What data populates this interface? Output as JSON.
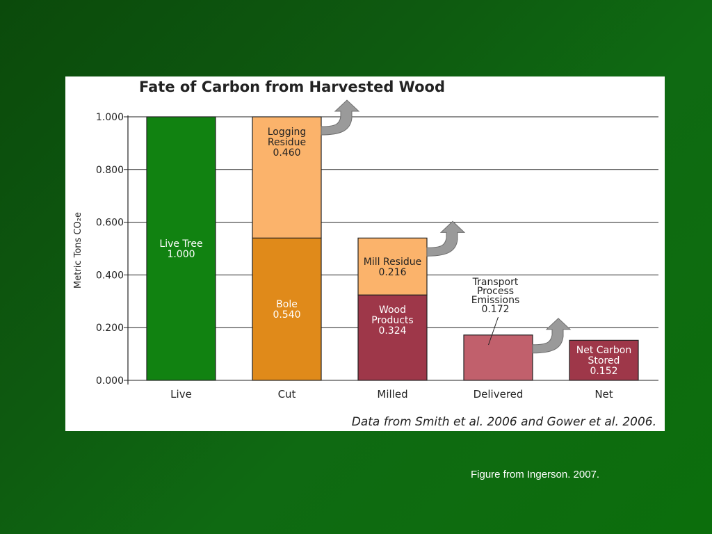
{
  "caption": "Figure from Ingerson. 2007.",
  "chart_data": {
    "type": "bar",
    "title": "Fate of Carbon from Harvested Wood",
    "ylabel": "Metric Tons CO₂e",
    "xlabel": "",
    "ylim": [
      0,
      1.0
    ],
    "yticks": [
      "0.000",
      "0.200",
      "0.400",
      "0.600",
      "0.800",
      "1.000"
    ],
    "grid": true,
    "categories": [
      "Live",
      "Cut",
      "Milled",
      "Delivered",
      "Net"
    ],
    "segments": [
      {
        "category": "Live",
        "bottom": 0.0,
        "value": 1.0,
        "label": [
          "Live Tree",
          "1.000"
        ],
        "color": "#118211",
        "text_color": "#ffffff",
        "label_pos": "middle"
      },
      {
        "category": "Cut",
        "bottom": 0.0,
        "value": 0.54,
        "label": [
          "Bole",
          "0.540"
        ],
        "color": "#e08a1a",
        "text_color": "#ffffff",
        "label_pos": "middle"
      },
      {
        "category": "Cut",
        "bottom": 0.54,
        "value": 0.46,
        "label": [
          "Logging",
          "Residue",
          "0.460"
        ],
        "color": "#fbb36b",
        "text_color": "#222222",
        "label_pos": "upper",
        "arrow": true
      },
      {
        "category": "Milled",
        "bottom": 0.0,
        "value": 0.324,
        "label": [
          "Wood",
          "Products",
          "0.324"
        ],
        "color": "#9e3749",
        "text_color": "#ffffff",
        "label_pos": "upper"
      },
      {
        "category": "Milled",
        "bottom": 0.324,
        "value": 0.216,
        "label": [
          "Mill Residue",
          "0.216"
        ],
        "color": "#fbb36b",
        "text_color": "#222222",
        "label_pos": "middle",
        "arrow": true
      },
      {
        "category": "Delivered",
        "bottom": 0.0,
        "value": 0.172,
        "label": [],
        "color": "#c1606c",
        "text_color": "#222222",
        "label_pos": "none",
        "arrow": true
      },
      {
        "category": "Net",
        "bottom": 0.0,
        "value": 0.152,
        "label": [
          "Net Carbon",
          "Stored",
          "0.152"
        ],
        "color": "#9e3749",
        "text_color": "#ffffff",
        "label_pos": "middle"
      }
    ],
    "annotations": [
      {
        "category": "Delivered",
        "text": [
          "Transport",
          "Process",
          "Emissions",
          "0.172"
        ]
      }
    ],
    "source_note": "Data from Smith et al. 2006 and Gower et al. 2006.",
    "colors": {
      "arrow": "#9a9a9a",
      "grid": "#222222"
    }
  }
}
